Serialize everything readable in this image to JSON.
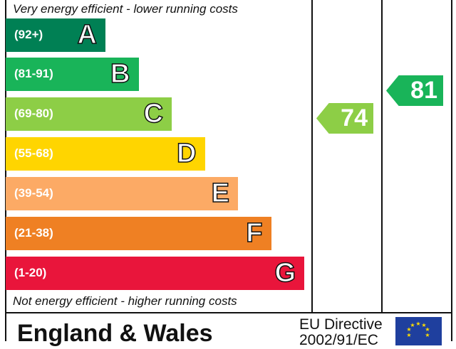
{
  "chart_data": {
    "type": "bar",
    "top_text": "Very energy efficient - lower running costs",
    "bottom_text": "Not energy efficient - higher running costs",
    "bands": [
      {
        "letter": "A",
        "range": "(92+)",
        "color": "#008054"
      },
      {
        "letter": "B",
        "range": "(81-91)",
        "color": "#19b459"
      },
      {
        "letter": "C",
        "range": "(69-80)",
        "color": "#8dce46"
      },
      {
        "letter": "D",
        "range": "(55-68)",
        "color": "#ffd500"
      },
      {
        "letter": "E",
        "range": "(39-54)",
        "color": "#fcaa65"
      },
      {
        "letter": "F",
        "range": "(21-38)",
        "color": "#ef8023"
      },
      {
        "letter": "G",
        "range": "(1-20)",
        "color": "#e9153b"
      }
    ],
    "current": {
      "value": 74,
      "color": "#8dce46"
    },
    "potential": {
      "value": 81,
      "color": "#19b459"
    }
  },
  "footer": {
    "country": "England & Wales",
    "directive_line1": "EU Directive",
    "directive_line2": "2002/91/EC"
  }
}
